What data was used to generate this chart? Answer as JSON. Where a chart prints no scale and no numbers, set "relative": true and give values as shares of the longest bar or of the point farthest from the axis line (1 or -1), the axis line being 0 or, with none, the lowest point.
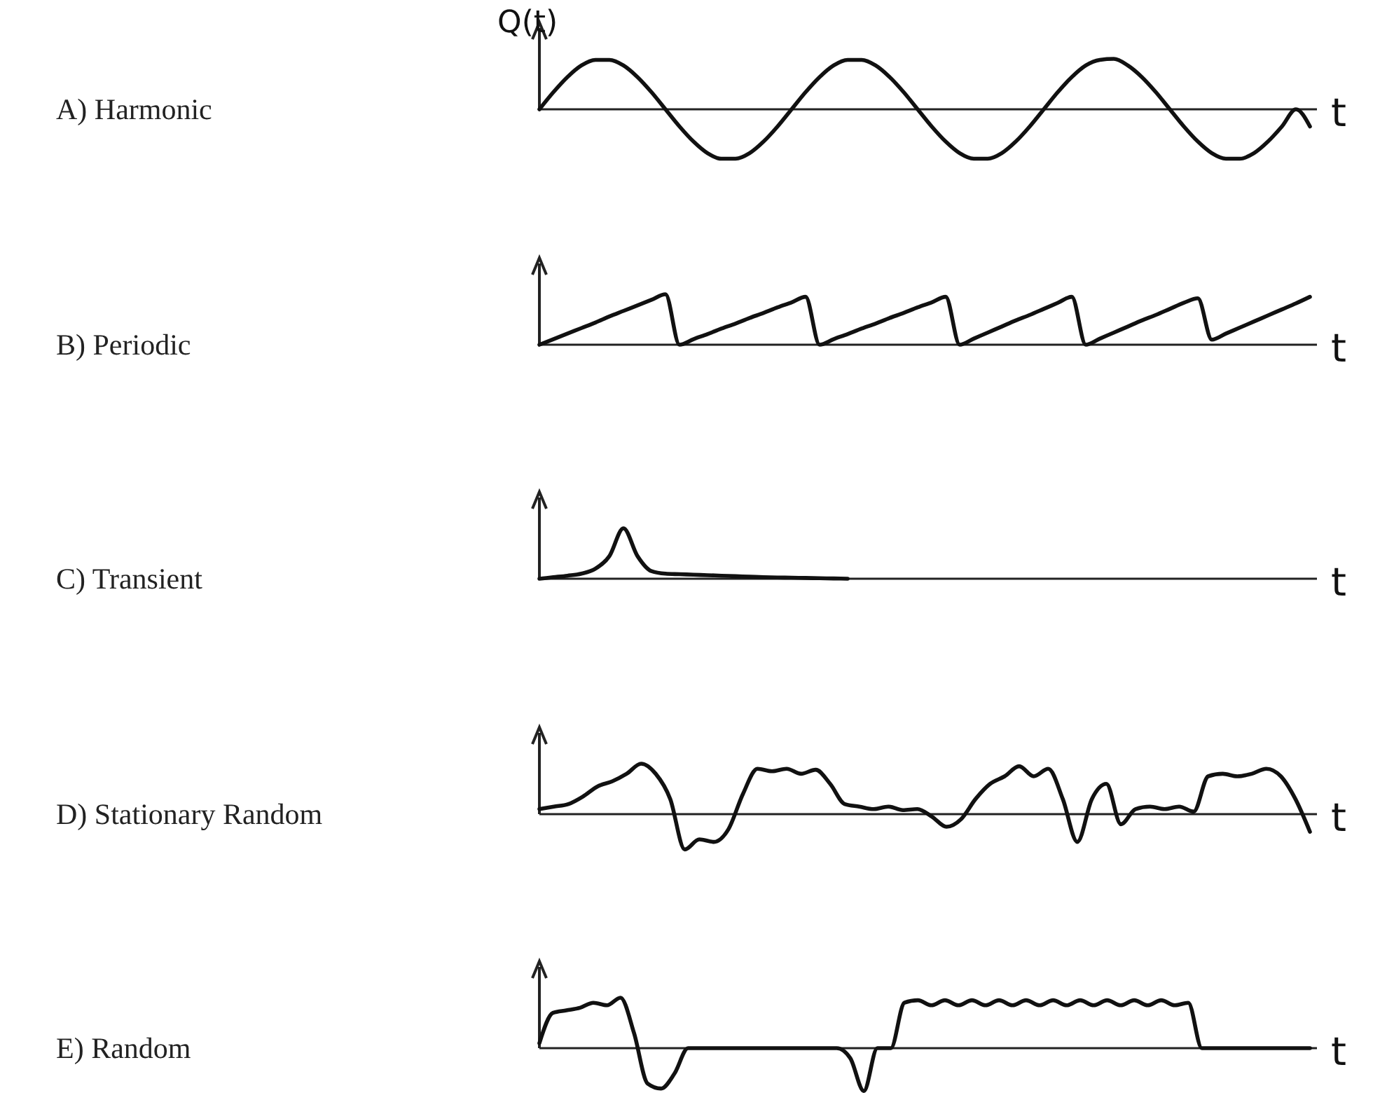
{
  "chart_data": [
    {
      "type": "line",
      "ylabel": "A)  Harmonic",
      "annotations": [
        "Q(t)"
      ],
      "xlabel": "t",
      "relative": true,
      "color": "#111111",
      "categories": [
        null,
        null,
        null,
        null,
        null,
        null,
        null,
        null,
        null,
        null,
        null,
        null,
        null,
        null,
        null,
        null,
        null,
        null,
        null,
        null,
        null,
        null,
        null,
        null,
        null,
        null,
        null,
        null,
        null,
        null,
        null,
        null,
        null,
        null,
        null,
        null,
        null,
        null,
        null,
        null,
        null,
        null,
        null,
        null,
        null,
        null,
        null,
        null,
        null,
        null,
        null,
        null,
        null,
        null,
        null,
        null
      ],
      "values": [
        0,
        0.34,
        0.64,
        0.87,
        0.98,
        0.98,
        0.87,
        0.64,
        0.34,
        0,
        -0.34,
        -0.64,
        -0.87,
        -0.98,
        -0.98,
        -0.87,
        -0.64,
        -0.34,
        0,
        0.34,
        0.64,
        0.87,
        0.98,
        0.98,
        0.87,
        0.64,
        0.34,
        0,
        -0.34,
        -0.64,
        -0.87,
        -0.98,
        -0.98,
        -0.87,
        -0.64,
        -0.34,
        0,
        0.34,
        0.64,
        0.87,
        0.98,
        1,
        0.87,
        0.64,
        0.34,
        0,
        -0.34,
        -0.64,
        -0.87,
        -0.98,
        -0.98,
        -0.87,
        -0.64,
        -0.34,
        0,
        -0.34
      ]
    },
    {
      "type": "line",
      "ylabel": "B)  Periodic",
      "xlabel": "t",
      "relative": true,
      "color": "#111111",
      "categories": [
        null,
        null,
        null,
        null,
        null,
        null,
        null,
        null,
        null,
        null,
        null,
        null,
        null,
        null,
        null,
        null,
        null,
        null,
        null,
        null,
        null,
        null,
        null,
        null,
        null,
        null,
        null,
        null,
        null,
        null,
        null,
        null,
        null,
        null,
        null,
        null,
        null,
        null,
        null,
        null,
        null,
        null,
        null,
        null,
        null,
        null,
        null,
        null,
        null,
        null,
        null,
        null,
        null,
        null,
        null,
        null
      ],
      "values": [
        0,
        0.11,
        0.22,
        0.33,
        0.44,
        0.56,
        0.67,
        0.78,
        0.89,
        1,
        0,
        0.11,
        0.21,
        0.32,
        0.42,
        0.53,
        0.63,
        0.74,
        0.84,
        0.95,
        0,
        0.11,
        0.21,
        0.32,
        0.42,
        0.53,
        0.63,
        0.74,
        0.84,
        0.95,
        0,
        0.12,
        0.24,
        0.36,
        0.48,
        0.59,
        0.71,
        0.83,
        0.95,
        0,
        0.12,
        0.24,
        0.36,
        0.48,
        0.59,
        0.71,
        0.83,
        0.92,
        0.1,
        0.22,
        0.34,
        0.46,
        0.58,
        0.7,
        0.82,
        0.95
      ]
    },
    {
      "type": "line",
      "ylabel": "C)  Transient",
      "xlabel": "t",
      "relative": true,
      "color": "#111111",
      "categories": [
        null,
        null,
        null,
        null,
        null,
        null,
        null,
        null,
        null,
        null,
        null,
        null,
        null,
        null,
        null,
        null,
        null,
        null,
        null,
        null,
        null,
        null,
        null,
        null,
        null,
        null,
        null,
        null,
        null,
        null,
        null,
        null,
        null,
        null,
        null,
        null,
        null,
        null,
        null,
        null,
        null,
        null,
        null,
        null,
        null,
        null,
        null,
        null,
        null,
        null,
        null,
        null,
        null,
        null,
        null,
        null
      ],
      "values": [
        0,
        0.03,
        0.06,
        0.1,
        0.2,
        0.45,
        1,
        0.45,
        0.15,
        0.1,
        0.09,
        0.08,
        0.07,
        0.06,
        0.05,
        0.04,
        0.03,
        0.025,
        0.02,
        0.015,
        0.01,
        0.005,
        0,
        null,
        null,
        null,
        null,
        null,
        null,
        null,
        null,
        null,
        null,
        null,
        null,
        null,
        null,
        null,
        null,
        null,
        null,
        null,
        null,
        null,
        null,
        null,
        null,
        null,
        null,
        null,
        null,
        null,
        null,
        null,
        null,
        null
      ]
    },
    {
      "type": "line",
      "ylabel": "D)  Stationary Random",
      "xlabel": "t",
      "relative": true,
      "color": "#111111",
      "categories": [
        null,
        null,
        null,
        null,
        null,
        null,
        null,
        null,
        null,
        null,
        null,
        null,
        null,
        null,
        null,
        null,
        null,
        null,
        null,
        null,
        null,
        null,
        null,
        null,
        null,
        null,
        null,
        null,
        null,
        null,
        null,
        null,
        null,
        null,
        null,
        null,
        null,
        null,
        null,
        null,
        null,
        null,
        null,
        null,
        null,
        null,
        null,
        null,
        null,
        null,
        null,
        null,
        null,
        null
      ],
      "values": [
        0.1,
        0.15,
        0.2,
        0.35,
        0.55,
        0.65,
        0.8,
        1,
        0.8,
        0.3,
        -0.7,
        -0.5,
        -0.55,
        -0.3,
        0.4,
        0.9,
        0.85,
        0.9,
        0.8,
        0.88,
        0.6,
        0.2,
        0.15,
        0.1,
        0.15,
        0.08,
        0.1,
        -0.05,
        -0.25,
        -0.1,
        0.3,
        0.6,
        0.75,
        0.95,
        0.75,
        0.9,
        0.3,
        -0.55,
        0.3,
        0.6,
        -0.2,
        0.1,
        0.15,
        0.1,
        0.15,
        0.05,
        0.75,
        0.8,
        0.75,
        0.8,
        0.9,
        0.75,
        0.3,
        -0.35
      ]
    },
    {
      "type": "line",
      "ylabel": "E)  Random",
      "xlabel": "t",
      "relative": true,
      "color": "#111111",
      "categories": [
        null,
        null,
        null,
        null,
        null,
        null,
        null,
        null,
        null,
        null,
        null,
        null,
        null,
        null,
        null,
        null,
        null,
        null,
        null,
        null,
        null,
        null,
        null,
        null,
        null,
        null,
        null,
        null,
        null,
        null,
        null,
        null,
        null,
        null,
        null,
        null,
        null,
        null,
        null,
        null,
        null,
        null,
        null,
        null,
        null,
        null,
        null,
        null,
        null,
        null,
        null,
        null,
        null,
        null,
        null,
        null,
        null,
        null
      ],
      "values": [
        0.1,
        0.7,
        0.75,
        0.8,
        0.9,
        0.85,
        1,
        0.3,
        -0.7,
        -0.8,
        -0.5,
        0,
        0,
        0,
        0,
        0,
        0,
        0,
        0,
        0,
        0,
        0,
        0,
        -0.2,
        -0.85,
        0,
        0,
        0.9,
        0.95,
        0.85,
        0.95,
        0.85,
        0.95,
        0.85,
        0.95,
        0.85,
        0.95,
        0.85,
        0.95,
        0.85,
        0.95,
        0.85,
        0.95,
        0.85,
        0.95,
        0.85,
        0.95,
        0.85,
        0.9,
        0,
        0,
        0,
        0,
        0,
        0,
        0,
        0,
        0
      ]
    }
  ]
}
